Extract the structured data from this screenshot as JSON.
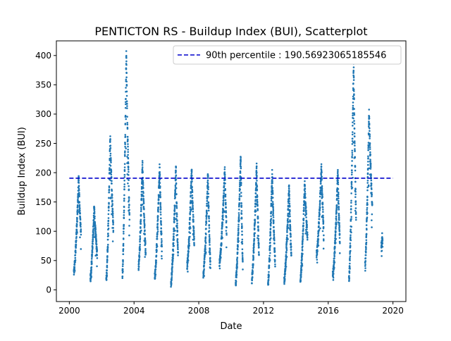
{
  "chart_data": {
    "type": "scatter",
    "title": "PENTICTON RS - Buildup Index (BUI), Scatterplot",
    "xlabel": "Date",
    "ylabel": "Buildup Index (BUI)",
    "xlim": [
      1999.2,
      2020.8
    ],
    "ylim": [
      -20,
      425
    ],
    "xticks": [
      2000,
      2004,
      2008,
      2012,
      2016,
      2020
    ],
    "xtick_labels": [
      "2000",
      "2004",
      "2008",
      "2012",
      "2016",
      "2020"
    ],
    "yticks": [
      0,
      50,
      100,
      150,
      200,
      250,
      300,
      350,
      400
    ],
    "ytick_labels": [
      "0",
      "50",
      "100",
      "150",
      "200",
      "250",
      "300",
      "350",
      "400"
    ],
    "grid": false,
    "legend_position": "upper-right",
    "colors": {
      "points": "#1f77b4",
      "percentile_line": "#0000cc",
      "axes": "#000000"
    },
    "series": [
      {
        "name": "BUI",
        "marker": "point",
        "seasons": [
          {
            "year": 2000,
            "start": 2000.28,
            "end": 2000.72,
            "start_value": 30,
            "peak_value": 190,
            "end_value": 95
          },
          {
            "year": 2001,
            "start": 2001.3,
            "end": 2001.72,
            "start_value": 20,
            "peak_value": 143,
            "end_value": 60
          },
          {
            "year": 2002,
            "start": 2002.28,
            "end": 2002.72,
            "start_value": 15,
            "peak_value": 265,
            "end_value": 105
          },
          {
            "year": 2003,
            "start": 2003.28,
            "end": 2003.72,
            "start_value": 25,
            "peak_value": 405,
            "end_value": 120
          },
          {
            "year": 2004,
            "start": 2004.28,
            "end": 2004.72,
            "start_value": 40,
            "peak_value": 218,
            "end_value": 60
          },
          {
            "year": 2005,
            "start": 2005.28,
            "end": 2005.72,
            "start_value": 22,
            "peak_value": 213,
            "end_value": 70
          },
          {
            "year": 2006,
            "start": 2006.28,
            "end": 2006.72,
            "start_value": 10,
            "peak_value": 208,
            "end_value": 60
          },
          {
            "year": 2007,
            "start": 2007.28,
            "end": 2007.72,
            "start_value": 40,
            "peak_value": 205,
            "end_value": 80
          },
          {
            "year": 2008,
            "start": 2008.28,
            "end": 2008.72,
            "start_value": 25,
            "peak_value": 198,
            "end_value": 40
          },
          {
            "year": 2009,
            "start": 2009.28,
            "end": 2009.72,
            "start_value": 45,
            "peak_value": 207,
            "end_value": 100
          },
          {
            "year": 2010,
            "start": 2010.28,
            "end": 2010.72,
            "start_value": 12,
            "peak_value": 228,
            "end_value": 40
          },
          {
            "year": 2011,
            "start": 2011.28,
            "end": 2011.72,
            "start_value": 20,
            "peak_value": 210,
            "end_value": 65
          },
          {
            "year": 2012,
            "start": 2012.28,
            "end": 2012.72,
            "start_value": 10,
            "peak_value": 202,
            "end_value": 45
          },
          {
            "year": 2013,
            "start": 2013.28,
            "end": 2013.72,
            "start_value": 15,
            "peak_value": 180,
            "end_value": 60
          },
          {
            "year": 2014,
            "start": 2014.28,
            "end": 2014.72,
            "start_value": 18,
            "peak_value": 183,
            "end_value": 90
          },
          {
            "year": 2015,
            "start": 2015.28,
            "end": 2015.72,
            "start_value": 60,
            "peak_value": 210,
            "end_value": 100
          },
          {
            "year": 2016,
            "start": 2016.28,
            "end": 2016.72,
            "start_value": 25,
            "peak_value": 200,
            "end_value": 80
          },
          {
            "year": 2017,
            "start": 2017.28,
            "end": 2017.72,
            "start_value": 15,
            "peak_value": 390,
            "end_value": 120
          },
          {
            "year": 2018,
            "start": 2018.28,
            "end": 2018.72,
            "start_value": 42,
            "peak_value": 305,
            "end_value": 140
          },
          {
            "year": 2019,
            "start": 2019.28,
            "end": 2019.36,
            "start_value": 75,
            "peak_value": 92,
            "end_value": 80
          }
        ]
      }
    ],
    "reference_lines": [
      {
        "type": "horizontal",
        "value": 190.56923065185546,
        "style": "dashed",
        "label": "90th percentile : 190.56923065185546"
      }
    ]
  }
}
